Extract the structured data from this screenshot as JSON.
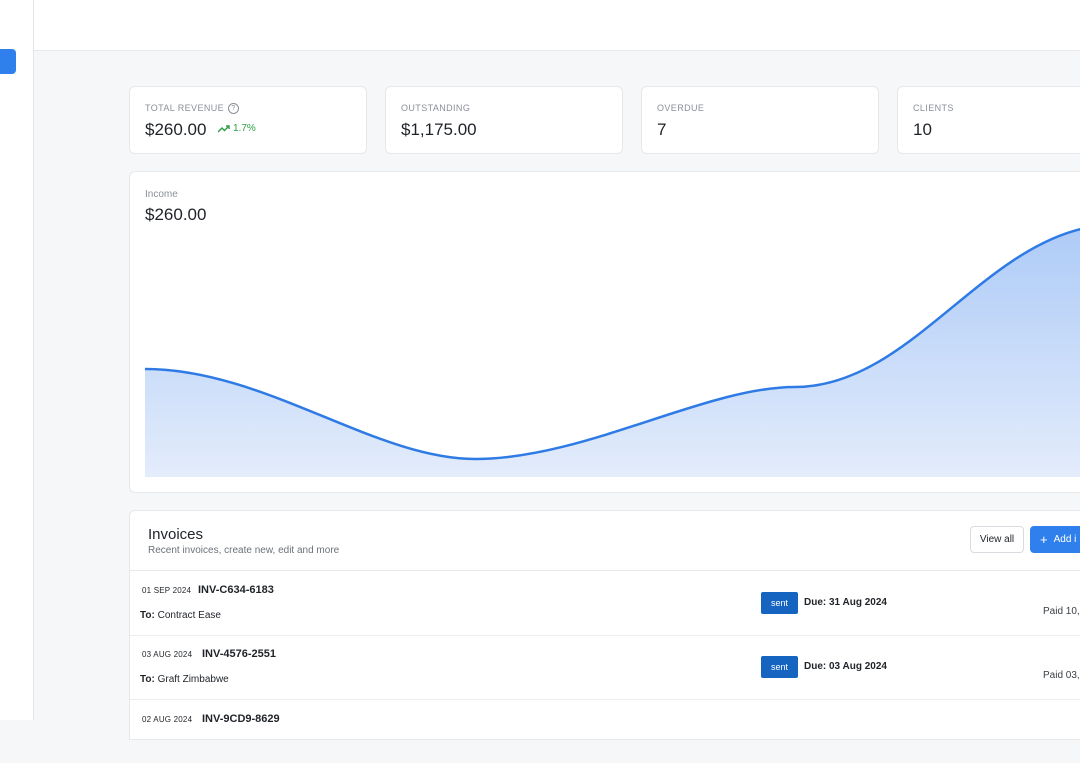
{
  "stats": [
    {
      "label": "TOTAL REVENUE",
      "value": "$260.00",
      "trend": "1.7%"
    },
    {
      "label": "OUTSTANDING",
      "value": "$1,175.00"
    },
    {
      "label": "OVERDUE",
      "value": "7"
    },
    {
      "label": "CLIENTS",
      "value": "10"
    }
  ],
  "income": {
    "label": "Income",
    "value": "$260.00"
  },
  "invoices": {
    "title": "Invoices",
    "subtitle": "Recent invoices, create new, edit and more",
    "view_all": "View all",
    "add_label": "Add i",
    "rows": [
      {
        "date": "01 SEP 2024",
        "number": "INV-C634-6183",
        "to_label": "To:",
        "client": "Contract Ease",
        "status": "sent",
        "due": "Due: 31 Aug 2024",
        "paid": "Paid 10,"
      },
      {
        "date": "03 AUG 2024",
        "number": "INV-4576-2551",
        "to_label": "To:",
        "client": "Graft Zimbabwe",
        "status": "sent",
        "due": "Due: 03 Aug 2024",
        "paid": "Paid 03,"
      },
      {
        "date": "02 AUG 2024",
        "number": "INV-9CD9-8629"
      }
    ]
  },
  "colors": {
    "accent": "#2f80ed",
    "badge": "#1565c0",
    "trend_up": "#2e9e44"
  }
}
